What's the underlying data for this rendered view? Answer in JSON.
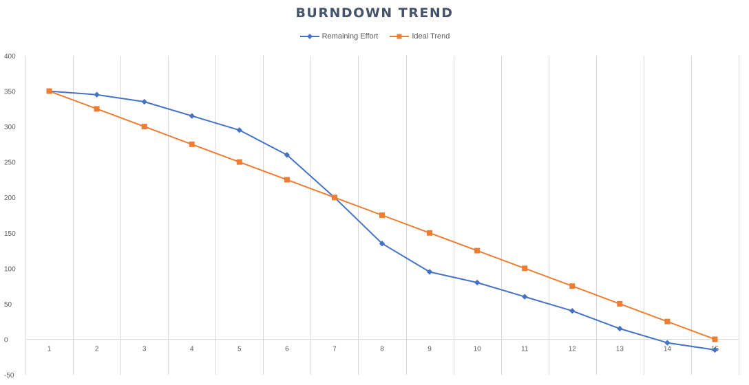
{
  "chart_data": {
    "type": "line",
    "title": "BURNDOWN TREND",
    "xlabel": "",
    "ylabel": "",
    "categories": [
      "1",
      "2",
      "3",
      "4",
      "5",
      "6",
      "7",
      "8",
      "9",
      "10",
      "11",
      "12",
      "13",
      "14",
      "15"
    ],
    "ylim": [
      -50,
      400
    ],
    "yticks": [
      -50,
      0,
      50,
      100,
      150,
      200,
      250,
      300,
      350,
      400
    ],
    "grid": "vertical",
    "legend_position": "top",
    "series": [
      {
        "name": "Remaining Effort",
        "color": "#4472c4",
        "marker": "diamond",
        "values": [
          350,
          345,
          335,
          315,
          295,
          260,
          200,
          135,
          95,
          80,
          60,
          40,
          15,
          -5,
          -15
        ]
      },
      {
        "name": "Ideal Trend",
        "color": "#ed7d31",
        "marker": "square",
        "values": [
          350,
          325,
          300,
          275,
          250,
          225,
          200,
          175,
          150,
          125,
          100,
          75,
          50,
          25,
          0
        ]
      }
    ]
  }
}
